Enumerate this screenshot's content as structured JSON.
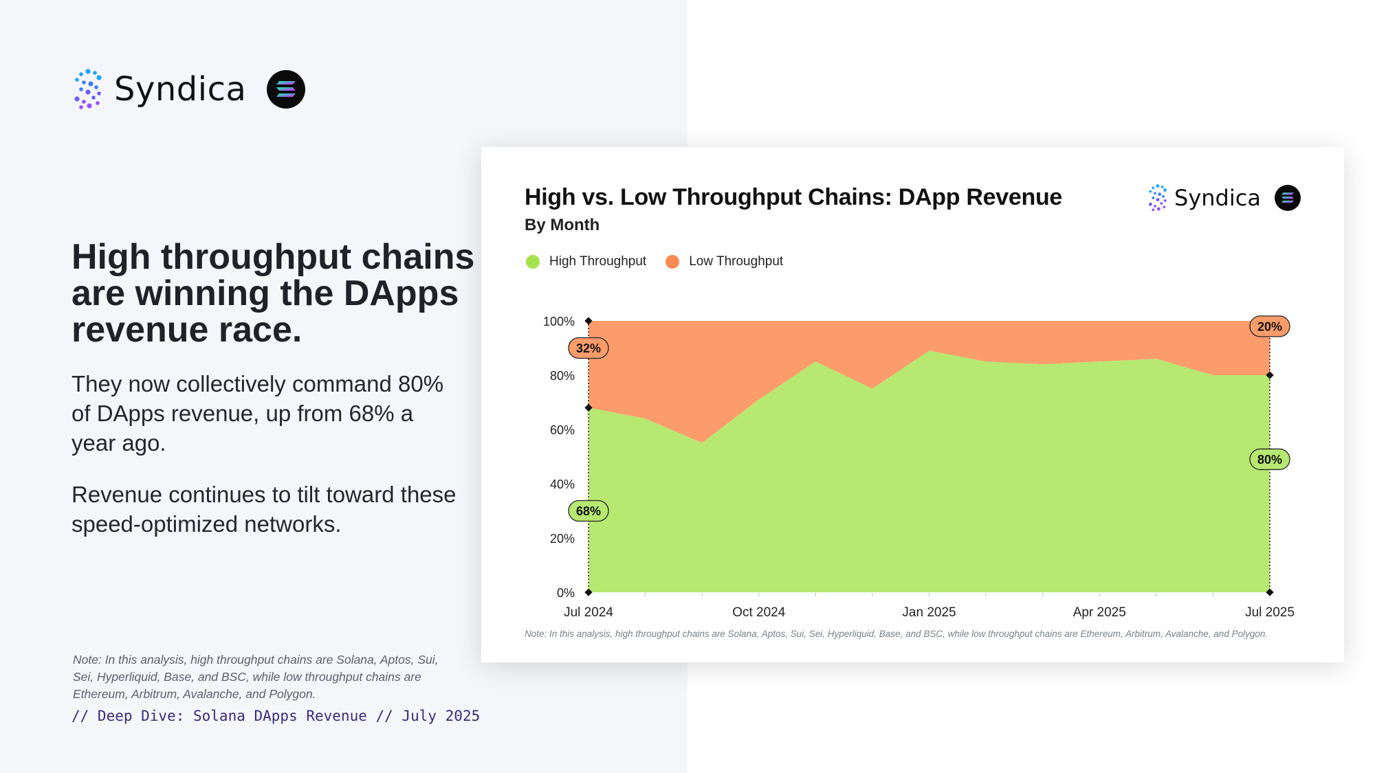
{
  "brand": {
    "name": "Syndica"
  },
  "headline": "High throughput chains are winning the DApps revenue race.",
  "body": [
    "They now collectively command 80% of DApps revenue, up from 68% a year ago.",
    "Revenue continues to tilt toward these speed-optimized networks."
  ],
  "note": "Note: In this analysis, high throughput chains are Solana, Aptos, Sui, Sei, Hyperliquid, Base, and BSC, while low throughput chains are Ethereum, Arbitrum, Avalanche, and Polygon.",
  "footer": "// Deep Dive: Solana DApps Revenue // July 2025",
  "colors": {
    "high": "#b7e871",
    "low": "#fd9c6b",
    "high_dot": "#a6e34f",
    "low_dot": "#fb8a53",
    "panel": "#f4f6fa"
  },
  "chart_data": {
    "type": "area",
    "stacked": true,
    "normalized": true,
    "title": "High vs. Low Throughput Chains: DApp Revenue",
    "subtitle": "By Month",
    "legend_position": "top-left",
    "grid": false,
    "x": [
      "Jul 2024",
      "Aug 2024",
      "Sep 2024",
      "Oct 2024",
      "Nov 2024",
      "Dec 2024",
      "Jan 2025",
      "Feb 2025",
      "Mar 2025",
      "Apr 2025",
      "May 2025",
      "Jun 2025",
      "Jul 2025"
    ],
    "x_ticks": [
      "Jul 2024",
      "Oct 2024",
      "Jan 2025",
      "Apr 2025",
      "Jul 2025"
    ],
    "y_ticks": [
      "0%",
      "20%",
      "40%",
      "60%",
      "80%",
      "100%"
    ],
    "ylim": [
      0,
      100
    ],
    "series": [
      {
        "name": "High Throughput",
        "values": [
          68,
          64,
          55,
          71,
          85,
          75,
          89,
          85,
          84,
          85,
          86,
          80,
          80
        ]
      },
      {
        "name": "Low Throughput",
        "values": [
          32,
          36,
          45,
          29,
          15,
          25,
          11,
          15,
          16,
          15,
          14,
          20,
          20
        ]
      }
    ],
    "annotations": [
      {
        "x": "Jul 2024",
        "series": "Low Throughput",
        "text": "32%"
      },
      {
        "x": "Jul 2024",
        "series": "High Throughput",
        "text": "68%"
      },
      {
        "x": "Jul 2025",
        "series": "Low Throughput",
        "text": "20%"
      },
      {
        "x": "Jul 2025",
        "series": "High Throughput",
        "text": "80%"
      }
    ],
    "note": "Note: In this analysis, high throughput chains are Solana, Aptos, Sui, Sei, Hyperliquid, Base, and BSC, while low throughput chains are Ethereum, Arbitrum, Avalanche, and Polygon."
  }
}
